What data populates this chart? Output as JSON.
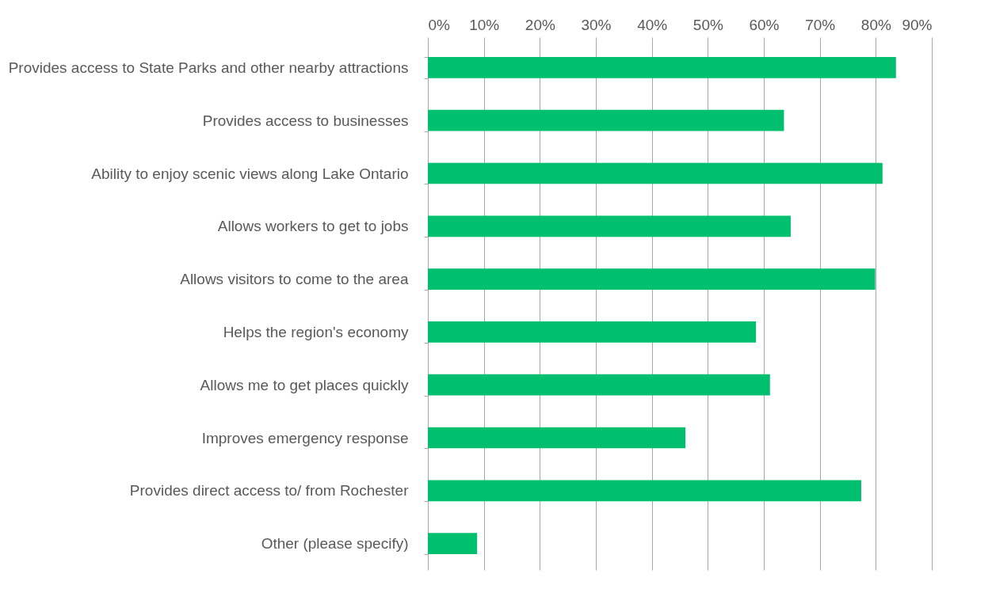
{
  "chart_data": {
    "type": "bar",
    "orientation": "horizontal",
    "categories": [
      "Provides access to State Parks and other nearby attractions",
      "Provides access to businesses",
      "Ability to enjoy scenic views along Lake Ontario",
      "Allows workers to get to jobs",
      "Allows visitors to come to the area",
      "Helps the region's economy",
      "Allows me to get places quickly",
      "Improves emergency response",
      "Provides direct access to/ from Rochester",
      "Other (please specify)"
    ],
    "values": [
      83.6,
      63.6,
      81.2,
      64.8,
      79.9,
      58.6,
      61.1,
      46.0,
      77.4,
      8.8
    ],
    "color": "#00c06f",
    "xlim": [
      0,
      90
    ],
    "xticks": [
      {
        "value": 0,
        "label": "0%"
      },
      {
        "value": 10,
        "label": "10%"
      },
      {
        "value": 20,
        "label": "20%"
      },
      {
        "value": 30,
        "label": "30%"
      },
      {
        "value": 40,
        "label": "40%"
      },
      {
        "value": 50,
        "label": "50%"
      },
      {
        "value": 60,
        "label": "60%"
      },
      {
        "value": 70,
        "label": "70%"
      },
      {
        "value": 80,
        "label": "80%"
      },
      {
        "value": 90,
        "label": "90%"
      }
    ],
    "grid": "x"
  }
}
